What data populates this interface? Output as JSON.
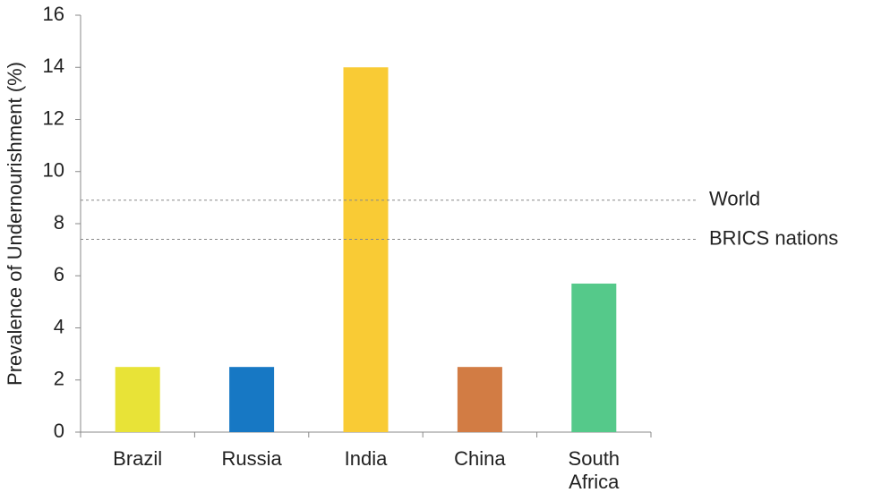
{
  "chart_data": {
    "type": "bar",
    "y_label": "Prevalence of Undernourishment (%)",
    "categories": [
      "Brazil",
      "Russia",
      "India",
      "China",
      "South Africa"
    ],
    "values": [
      2.5,
      2.5,
      14,
      2.5,
      5.7
    ],
    "colors": [
      "#e8e337",
      "#1778c4",
      "#f9cb35",
      "#d27c44",
      "#55c98a"
    ],
    "ylim": [
      0,
      16
    ],
    "yticks": [
      0,
      2,
      4,
      6,
      8,
      10,
      12,
      14,
      16
    ],
    "grid": false,
    "reference_lines": [
      {
        "label": "World",
        "value": 8.9
      },
      {
        "label": "BRICS nations",
        "value": 7.4
      }
    ]
  }
}
